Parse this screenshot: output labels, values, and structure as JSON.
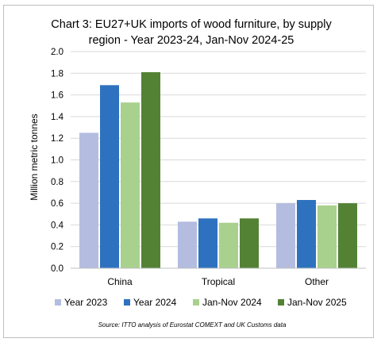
{
  "chart_data": {
    "type": "bar",
    "title_lines": [
      "Chart 3: EU27+UK imports of wood furniture, by supply",
      "region - Year 2023-24, Jan-Nov 2024-25"
    ],
    "xlabel": "",
    "ylabel": "Million metric tonnes",
    "ylim": [
      0,
      2.0
    ],
    "yticks": [
      "0.0",
      "0.2",
      "0.4",
      "0.6",
      "0.8",
      "1.0",
      "1.2",
      "1.4",
      "1.6",
      "1.8",
      "2.0"
    ],
    "categories": [
      "China",
      "Tropical",
      "Other"
    ],
    "series": [
      {
        "name": "Year 2023",
        "color": "#b4bde0",
        "values": [
          1.25,
          0.43,
          0.6
        ]
      },
      {
        "name": "Year 2024",
        "color": "#2e72bf",
        "values": [
          1.69,
          0.46,
          0.63
        ]
      },
      {
        "name": "Jan-Nov 2024",
        "color": "#a9d18e",
        "values": [
          1.53,
          0.42,
          0.58
        ]
      },
      {
        "name": "Jan-Nov 2025",
        "color": "#548235",
        "values": [
          1.81,
          0.46,
          0.6
        ]
      }
    ],
    "grid": true,
    "legend_position": "bottom",
    "source": "Source: ITTO analysis of Eurostat COMEXT and UK Customs data"
  }
}
